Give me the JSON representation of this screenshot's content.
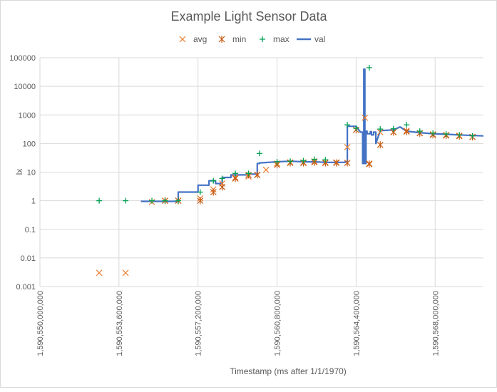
{
  "chart_data": {
    "type": "scatter",
    "title": "Example Light Sensor Data",
    "xlabel": "Timestamp (ms after 1/1/1970)",
    "ylabel": "lx",
    "x_scale": "linear",
    "y_scale": "log",
    "xlim": [
      1590550000000,
      1590570200000
    ],
    "ylim": [
      0.001,
      100000
    ],
    "grid": true,
    "legend_position": "top",
    "x_ticks": [
      1590550000000,
      1590553600000,
      1590557200000,
      1590560800000,
      1590564400000,
      1590568000000
    ],
    "x_tick_labels": [
      "1,590,550,000,000",
      "1,590,553,600,000",
      "1,590,557,200,000",
      "1,590,560,800,000",
      "1,590,564,400,000",
      "1,590,568,000,000"
    ],
    "y_ticks": [
      0.001,
      0.01,
      0.1,
      1,
      10,
      100,
      1000,
      10000,
      100000
    ],
    "y_tick_labels": [
      "0.001",
      "0.01",
      "0.1",
      "1",
      "10",
      "100",
      "1000",
      "10000",
      "100000"
    ],
    "colors": {
      "avg": "#ed7d31",
      "min": "#c55a11",
      "max": "#00a050",
      "val": "#4472c4",
      "grid": "#d9d9d9"
    },
    "series": [
      {
        "name": "avg",
        "marker": "x",
        "x": [
          1590552700000,
          1590553900000,
          1590555100000,
          1590555700000,
          1590556300000,
          1590557300000,
          1590557900000,
          1590558300000,
          1590558900000,
          1590559500000,
          1590559900000,
          1590560300000,
          1590560800000,
          1590561400000,
          1590562000000,
          1590562500000,
          1590563000000,
          1590563500000,
          1590564000000,
          1590564800000,
          1590565000000,
          1590565500000,
          1590566100000,
          1590566700000,
          1590567300000,
          1590567900000,
          1590568500000,
          1590569100000,
          1590569700000
        ],
        "y": [
          0.003,
          0.003,
          0.9,
          1,
          1,
          1.2,
          2.5,
          4,
          6.5,
          7,
          8,
          12,
          20,
          22,
          22,
          24,
          22,
          22,
          75,
          800,
          20,
          250,
          250,
          280,
          230,
          210,
          200,
          190,
          170
        ]
      },
      {
        "name": "min",
        "marker": "asterisk",
        "x": [
          1590555700000,
          1590556300000,
          1590557300000,
          1590557900000,
          1590558300000,
          1590558900000,
          1590559500000,
          1590559900000,
          1590560800000,
          1590561400000,
          1590562000000,
          1590562500000,
          1590563000000,
          1590563500000,
          1590564000000,
          1590564400000,
          1590565000000,
          1590565500000,
          1590566100000,
          1590566700000,
          1590567300000,
          1590567900000,
          1590568500000,
          1590569100000,
          1590569700000
        ],
        "y": [
          1,
          1,
          1,
          2,
          3,
          6,
          8,
          8,
          18,
          21,
          21,
          22,
          21,
          21,
          21,
          300,
          19,
          90,
          250,
          260,
          230,
          200,
          190,
          180,
          170
        ]
      },
      {
        "name": "max",
        "marker": "plus",
        "x": [
          1590552700000,
          1590553900000,
          1590555100000,
          1590555700000,
          1590556300000,
          1590557300000,
          1590557900000,
          1590558300000,
          1590558900000,
          1590559500000,
          1590560000000,
          1590560800000,
          1590561400000,
          1590562000000,
          1590562500000,
          1590563000000,
          1590564000000,
          1590564400000,
          1590565000000,
          1590565500000,
          1590566100000,
          1590566700000,
          1590567300000,
          1590567900000,
          1590568500000,
          1590569100000,
          1590569700000
        ],
        "y": [
          1,
          1,
          1,
          1,
          1,
          2,
          5,
          6,
          9,
          9,
          45,
          23,
          24,
          25,
          28,
          27,
          450,
          340,
          45000,
          320,
          330,
          450,
          270,
          230,
          215,
          200,
          185
        ]
      },
      {
        "name": "val",
        "marker": "line",
        "x": [
          1590554600000,
          1590556300000,
          1590556300000,
          1590557200000,
          1590557200000,
          1590557700000,
          1590557700000,
          1590558000000,
          1590558000000,
          1590558300000,
          1590558300000,
          1590558700000,
          1590558700000,
          1590559400000,
          1590559400000,
          1590559900000,
          1590559900000,
          1590560000000,
          1590560000000,
          1590560800000,
          1590561400000,
          1590562000000,
          1590562500000,
          1590563000000,
          1590563500000,
          1590563900000,
          1590563900000,
          1590564000000,
          1590564000000,
          1590564400000,
          1590564600000,
          1590564700000,
          1590564700000,
          1590564750000,
          1590564750000,
          1590564800000,
          1590564800000,
          1590564850000,
          1590564850000,
          1590564900000,
          1590564900000,
          1590565050000,
          1590565050000,
          1590565100000,
          1590565100000,
          1590565200000,
          1590565200000,
          1590565300000,
          1590565300000,
          1590565500000,
          1590566100000,
          1590566400000,
          1590566700000,
          1590567300000,
          1590567900000,
          1590568500000,
          1590569100000,
          1590570200000
        ],
        "y": [
          0.95,
          0.95,
          2,
          2,
          3.5,
          3.5,
          5,
          5,
          4,
          4,
          6.5,
          6.5,
          8,
          8,
          8.5,
          8.5,
          20,
          20,
          21,
          23,
          24,
          23,
          23,
          22,
          22,
          22,
          23,
          23,
          400,
          400,
          250,
          250,
          20,
          20,
          40000,
          40000,
          20,
          20,
          270,
          270,
          220,
          220,
          260,
          260,
          200,
          200,
          250,
          250,
          100,
          280,
          300,
          380,
          270,
          240,
          220,
          210,
          200,
          185
        ]
      }
    ]
  }
}
